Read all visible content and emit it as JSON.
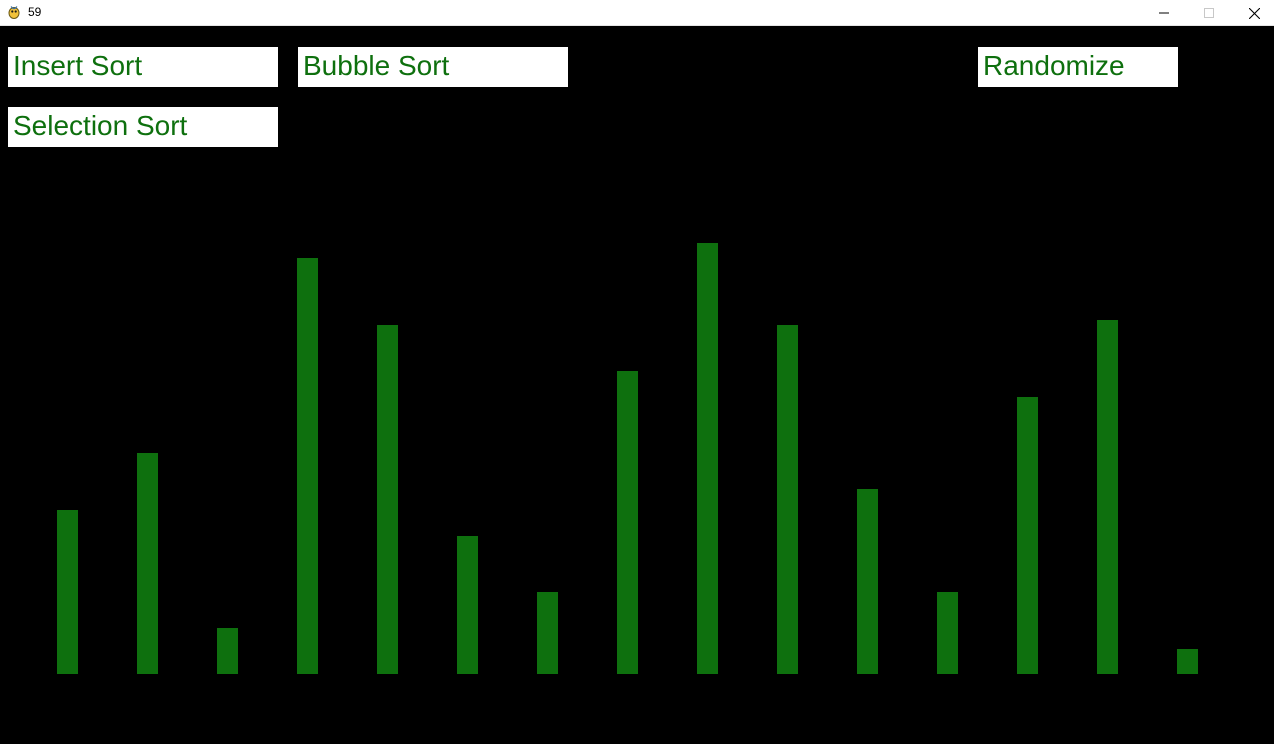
{
  "window": {
    "title": "59",
    "icon": "pygame-snake-icon",
    "controls": [
      "minimize-icon",
      "maximize-icon",
      "close-icon"
    ]
  },
  "buttons": {
    "insert_sort": "Insert Sort",
    "bubble_sort": "Bubble Sort",
    "randomize": "Randomize",
    "selection_sort": "Selection Sort"
  },
  "colors": {
    "background": "#000000",
    "bar": "#0e700e",
    "button_bg": "#ffffff",
    "button_text": "#0e700e"
  },
  "chart_data": {
    "type": "bar",
    "values": [
      164,
      221,
      46,
      416,
      349,
      138,
      82,
      303,
      431,
      349,
      185,
      82,
      277,
      354,
      25
    ]
  }
}
